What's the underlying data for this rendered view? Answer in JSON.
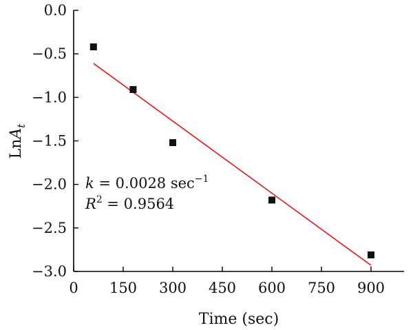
{
  "chart_data": {
    "type": "scatter",
    "xlabel": "Time (sec)",
    "ylabel": {
      "base": "Ln",
      "var": "A",
      "sub": "t"
    },
    "xlim": [
      0,
      1000
    ],
    "ylim": [
      -3.0,
      0.0
    ],
    "x_ticks": [
      0,
      150,
      300,
      450,
      600,
      750,
      900
    ],
    "x_tick_labels": [
      "0",
      "150",
      "300",
      "450",
      "600",
      "750",
      "900"
    ],
    "y_ticks": [
      0.0,
      -0.5,
      -1.0,
      -1.5,
      -2.0,
      -2.5,
      -3.0
    ],
    "y_tick_labels": [
      "0.0",
      "−0.5",
      "−1.0",
      "−1.5",
      "−2.0",
      "−2.5",
      "−3.0"
    ],
    "grid": false,
    "legend": "none",
    "series": [
      {
        "x": [
          60,
          180,
          300,
          600,
          900
        ],
        "y": [
          -0.42,
          -0.91,
          -1.52,
          -2.18,
          -2.81
        ],
        "marker": "square",
        "color": "#111111"
      }
    ],
    "fit_line": {
      "x": [
        60,
        900
      ],
      "y": [
        -0.61,
        -2.93
      ],
      "color": "#e8141c"
    },
    "annotations": {
      "k_symbol": "k",
      "k_text": " = 0.0028 sec",
      "k_exp": "−1",
      "r_symbol": "R",
      "r_exp": "2",
      "r_text": " = 0.9564"
    }
  }
}
